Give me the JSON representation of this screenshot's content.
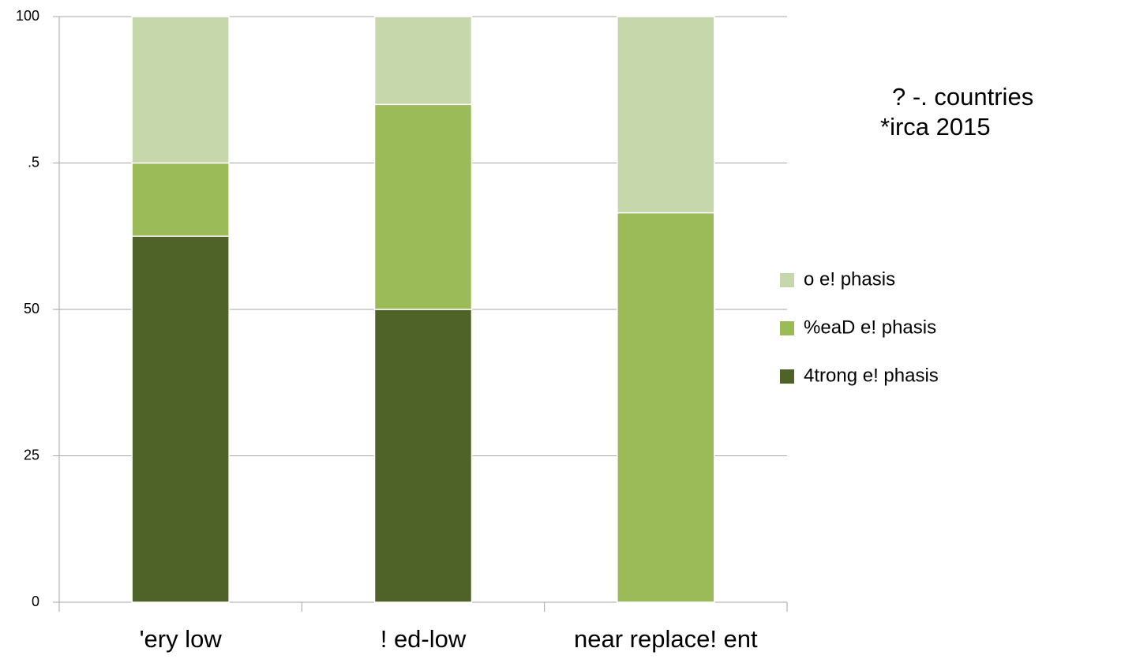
{
  "chart_data": {
    "type": "stacked_bar",
    "title": "? -. countries",
    "subtitle": "*irca 2015",
    "categories": [
      "'ery low",
      "! ed-low",
      "near replace! ent"
    ],
    "series": [
      {
        "name": "4trong e! phasis",
        "color": "#4f6228",
        "values": [
          62.5,
          50,
          0
        ]
      },
      {
        "name": "%eaD e! phasis",
        "color": "#9bbb59",
        "values": [
          12.5,
          35,
          66.5
        ]
      },
      {
        "name": "o e! phasis",
        "color": "#c6d7ac",
        "values": [
          25,
          15,
          33.5
        ]
      }
    ],
    "ylim": [
      0,
      100
    ],
    "yticks": [
      0,
      25,
      50,
      {
        "value": 75,
        "label": ".5"
      },
      100
    ],
    "grid": true,
    "legend": "right"
  }
}
